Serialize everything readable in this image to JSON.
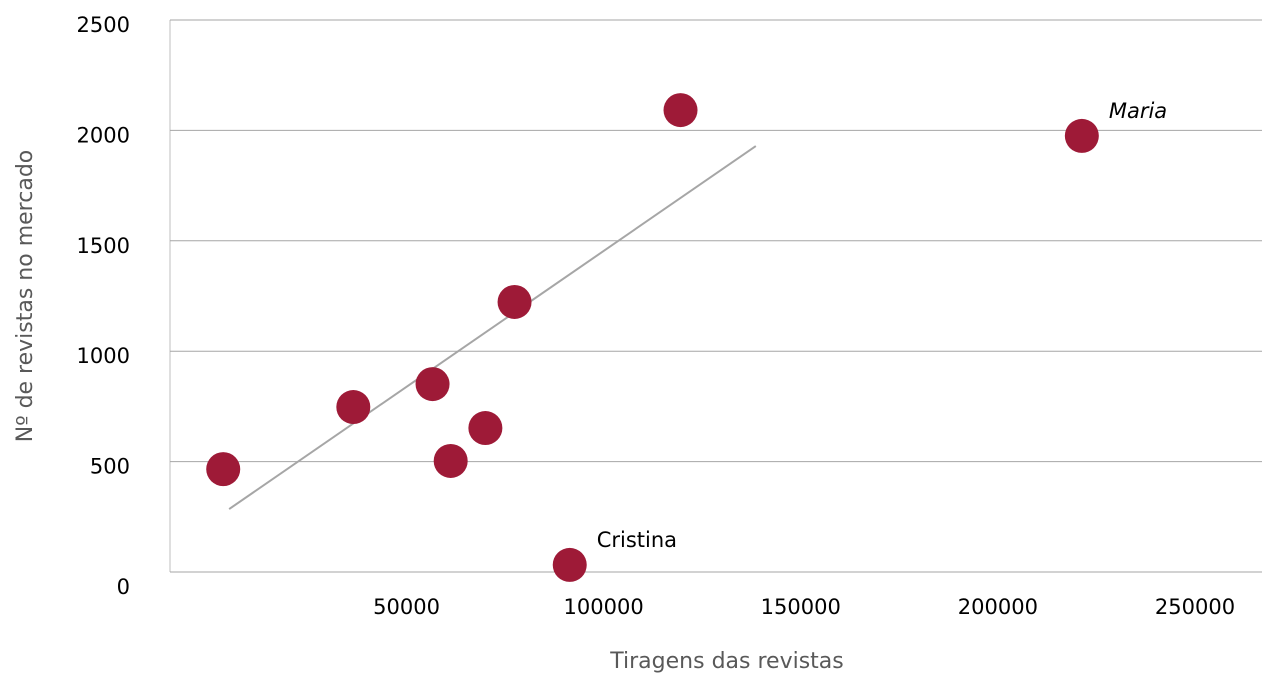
{
  "chart_data": {
    "type": "scatter",
    "x_label": "Tiragens das revistas",
    "y_label": "Nº de revistas no mercado",
    "x": [
      3500,
      36500,
      56600,
      61200,
      70000,
      77400,
      91400,
      119500,
      221300
    ],
    "values": [
      466,
      747,
      851,
      503,
      652,
      1223,
      32,
      2092,
      1975
    ],
    "point_labels": [
      null,
      null,
      null,
      null,
      null,
      null,
      "Cristina",
      null,
      "Maria"
    ],
    "color": "#9e1a37",
    "trendline": {
      "x": [
        5000,
        138600
      ],
      "values": [
        285,
        1929
      ],
      "color": "#a6a6a6"
    },
    "xlim": [
      -10000,
      267000
    ],
    "xticks": [
      50000,
      100000,
      150000,
      200000,
      250000
    ],
    "ylim": [
      0,
      2500
    ],
    "yticks": [
      0,
      500,
      1000,
      1500,
      2000,
      2500
    ],
    "grid": true
  }
}
